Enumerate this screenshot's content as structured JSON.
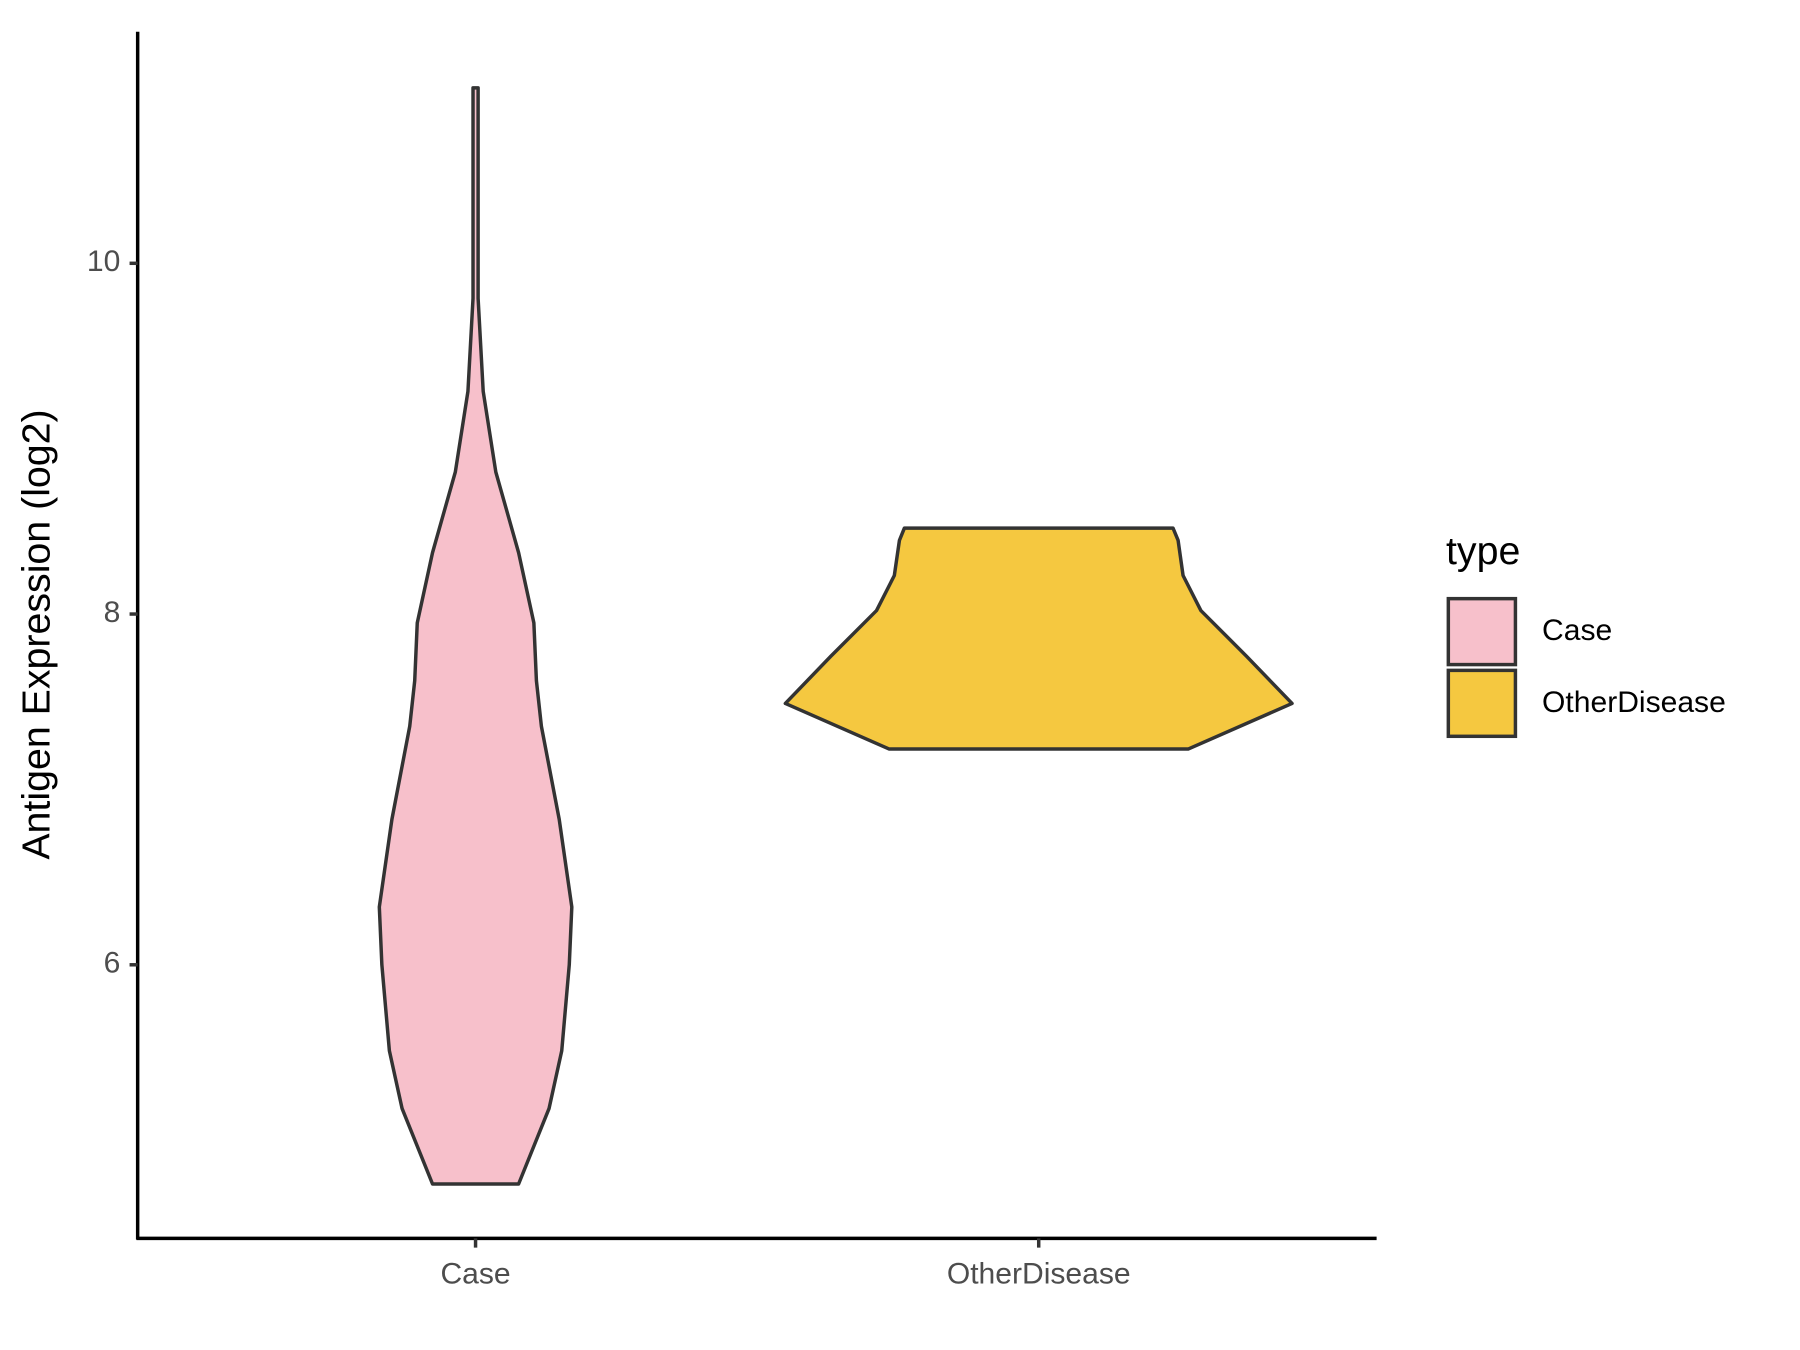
{
  "chart_data": {
    "type": "violin",
    "y_label": "Antigen Expression (log2)",
    "categories": [
      "Case",
      "OtherDisease"
    ],
    "legend_title": "type",
    "legend_position": "right",
    "ylim": [
      4.44,
      11.32
    ],
    "yticks": [
      6,
      8,
      10
    ],
    "series": [
      {
        "name": "Case",
        "color": "#f7c0cb",
        "y": [
          4.75,
          5.18,
          5.51,
          6.0,
          6.33,
          6.83,
          7.36,
          7.62,
          7.95,
          8.35,
          8.81,
          9.27,
          9.8,
          10.46,
          11.0
        ],
        "density": [
          0.17,
          0.29,
          0.34,
          0.37,
          0.38,
          0.33,
          0.26,
          0.24,
          0.23,
          0.17,
          0.08,
          0.03,
          0.01,
          0.01,
          0.01
        ]
      },
      {
        "name": "OtherDisease",
        "color": "#f5c840",
        "y": [
          7.23,
          7.49,
          7.76,
          8.02,
          8.22,
          8.42,
          8.49
        ],
        "density": [
          0.59,
          1.0,
          0.82,
          0.64,
          0.57,
          0.55,
          0.53
        ]
      }
    ]
  }
}
